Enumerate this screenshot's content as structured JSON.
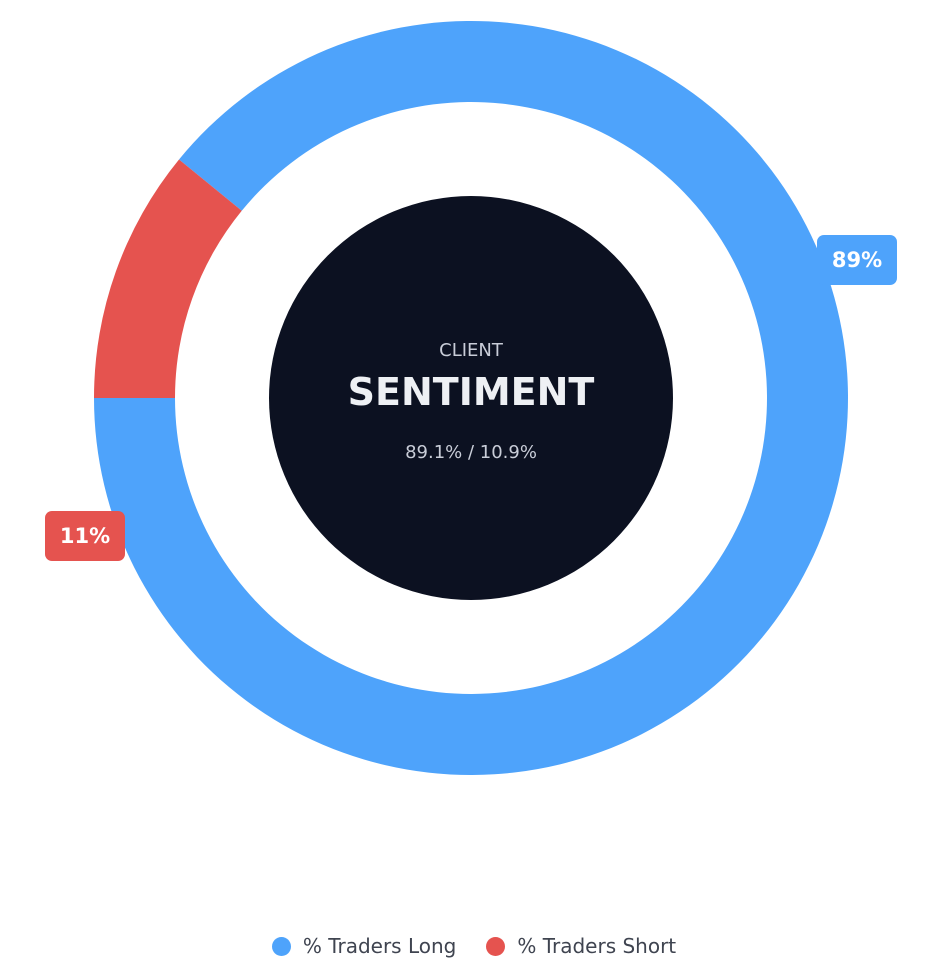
{
  "chart_data": {
    "type": "pie",
    "variant": "donut",
    "center": {
      "line1": "CLIENT",
      "line2": "SENTIMENT",
      "line3": "89.1% / 10.9%"
    },
    "series": [
      {
        "name": "% Traders Long",
        "value": 89.1,
        "label": "89%",
        "color": "#4ea3fb"
      },
      {
        "name": "% Traders Short",
        "value": 10.9,
        "label": "11%",
        "color": "#e5534f"
      }
    ],
    "legend_position": "bottom"
  },
  "colors": {
    "center_fill": "#0c1121",
    "center_text_muted": "#c9cdd8",
    "center_text_main": "#eef0f4"
  }
}
